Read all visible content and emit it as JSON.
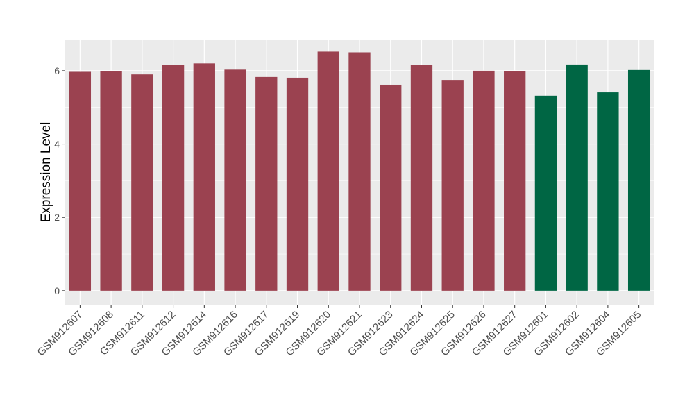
{
  "chart_data": {
    "type": "bar",
    "title": "",
    "xlabel": "",
    "ylabel": "Expression Level",
    "ylim": [
      -0.4,
      6.85
    ],
    "yticks": [
      0,
      2,
      4,
      6
    ],
    "grid": true,
    "panel_background": "#ebebeb",
    "grid_color": "#ffffff",
    "categories": [
      "GSM912607",
      "GSM912608",
      "GSM912611",
      "GSM912612",
      "GSM912614",
      "GSM912616",
      "GSM912617",
      "GSM912619",
      "GSM912620",
      "GSM912621",
      "GSM912623",
      "GSM912624",
      "GSM912625",
      "GSM912626",
      "GSM912627",
      "GSM912601",
      "GSM912602",
      "GSM912604",
      "GSM912605"
    ],
    "values": [
      5.97,
      5.98,
      5.9,
      6.16,
      6.2,
      6.03,
      5.83,
      5.81,
      6.52,
      6.5,
      5.62,
      6.15,
      5.75,
      6.0,
      5.98,
      5.32,
      6.17,
      5.41,
      6.02
    ],
    "colors": [
      "#9b4250",
      "#9b4250",
      "#9b4250",
      "#9b4250",
      "#9b4250",
      "#9b4250",
      "#9b4250",
      "#9b4250",
      "#9b4250",
      "#9b4250",
      "#9b4250",
      "#9b4250",
      "#9b4250",
      "#9b4250",
      "#9b4250",
      "#006644",
      "#006644",
      "#006644",
      "#006644"
    ]
  }
}
